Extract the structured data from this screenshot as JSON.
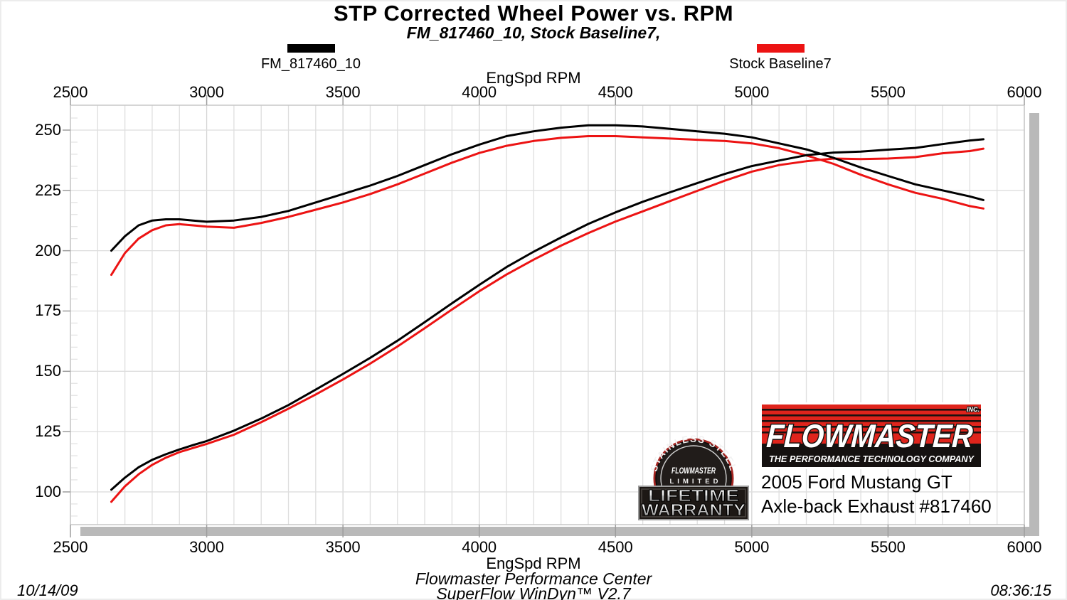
{
  "title": "STP Corrected Wheel Power vs. RPM",
  "subtitle": "FM_817460_10, Stock Baseline7,",
  "legend": {
    "items": [
      {
        "label": "FM_817460_10",
        "color": "#000000"
      },
      {
        "label": "Stock Baseline7",
        "color": "#ec1313"
      }
    ]
  },
  "axis": {
    "x_label_top": "EngSpd  RPM",
    "x_label_bottom": "EngSpd  RPM",
    "x_ticks": [
      2500,
      3000,
      3500,
      4000,
      4500,
      5000,
      5500,
      6000
    ],
    "y_ticks": [
      250,
      225,
      200,
      175,
      150,
      125,
      100
    ]
  },
  "chart_data": {
    "type": "line",
    "title": "STP Corrected Wheel Power vs. RPM",
    "subtitle": "FM_817460_10, Stock Baseline7,",
    "xlabel": "EngSpd  RPM",
    "x_range": [
      2500,
      6000
    ],
    "x_minor_step": 100,
    "y_label_range": [
      100,
      250
    ],
    "y_major_step": 25,
    "grid": true,
    "legend_position": "top",
    "x": [
      2650,
      2700,
      2750,
      2800,
      2850,
      2900,
      2950,
      3000,
      3100,
      3200,
      3300,
      3400,
      3500,
      3600,
      3700,
      3800,
      3900,
      4000,
      4100,
      4200,
      4300,
      4400,
      4500,
      4600,
      4700,
      4800,
      4900,
      5000,
      5100,
      5200,
      5300,
      5400,
      5500,
      5600,
      5700,
      5800,
      5850
    ],
    "series": [
      {
        "name": "Stock Baseline7",
        "measure": "torque",
        "color": "#ec1313",
        "values": [
          190,
          199,
          205,
          208.5,
          210.5,
          211,
          210.5,
          210,
          209.5,
          211.5,
          214,
          217,
          220,
          223.5,
          227.5,
          232,
          236.5,
          240.5,
          243.5,
          245.5,
          246.8,
          247.5,
          247.5,
          247,
          246.5,
          246,
          245.5,
          244.5,
          242.5,
          239.5,
          236,
          231.5,
          227.5,
          224,
          221.5,
          218.5,
          217.5
        ]
      },
      {
        "name": "Stock Baseline7",
        "measure": "power",
        "color": "#ec1313",
        "values": [
          95.9,
          102.3,
          107.3,
          111.2,
          114.2,
          116.5,
          118.2,
          119.9,
          123.7,
          128.9,
          134.5,
          140.4,
          146.6,
          153.2,
          160.3,
          167.9,
          175.6,
          183.2,
          190.1,
          196.3,
          202.1,
          207.3,
          212.1,
          216.3,
          220.6,
          224.8,
          229,
          232.8,
          235.5,
          237.1,
          238.2,
          238,
          238.2,
          238.8,
          240.4,
          241.3,
          242.3
        ]
      },
      {
        "name": "FM_817460_10",
        "measure": "torque",
        "color": "#000000",
        "values": [
          200,
          206,
          210.5,
          212.5,
          213,
          213,
          212.5,
          212,
          212.5,
          214,
          216.5,
          220,
          223.5,
          227,
          231,
          235.5,
          240,
          244,
          247.5,
          249.5,
          251,
          252,
          252,
          251.5,
          250.5,
          249.5,
          248.5,
          247,
          244.5,
          242,
          238.5,
          234.5,
          231,
          227.5,
          225,
          222.5,
          221
        ]
      },
      {
        "name": "FM_817460_10",
        "measure": "power",
        "color": "#000000",
        "values": [
          100.9,
          105.9,
          110.2,
          113.3,
          115.6,
          117.6,
          119.4,
          121.1,
          125.4,
          130.4,
          136,
          142.4,
          148.9,
          155.6,
          162.7,
          170.4,
          178.2,
          185.8,
          193.2,
          199.6,
          205.5,
          211.1,
          215.9,
          220.3,
          224.2,
          228,
          231.8,
          235.1,
          237.4,
          239.6,
          240.7,
          241.1,
          241.9,
          242.6,
          244.2,
          245.7,
          246.2
        ]
      }
    ]
  },
  "branding": {
    "badge": {
      "arc_text": "STAINLESS STEEL",
      "brand": "FLOWMASTER",
      "limited": "LIMITED",
      "line1": "LIFETIME",
      "line2": "WARRANTY"
    },
    "logo": {
      "name": "FLOWMASTER",
      "inc": "INC.",
      "tagline": "THE PERFORMANCE TECHNOLOGY COMPANY"
    },
    "vehicle_line1": "2005 Ford Mustang GT",
    "vehicle_line2": "Axle-back Exhaust #817460"
  },
  "footer": {
    "center_line1": "Flowmaster Performance Center",
    "center_line2": "SuperFlow WinDyn™ V2.7",
    "date": "10/14/09",
    "time": "08:36:15"
  }
}
